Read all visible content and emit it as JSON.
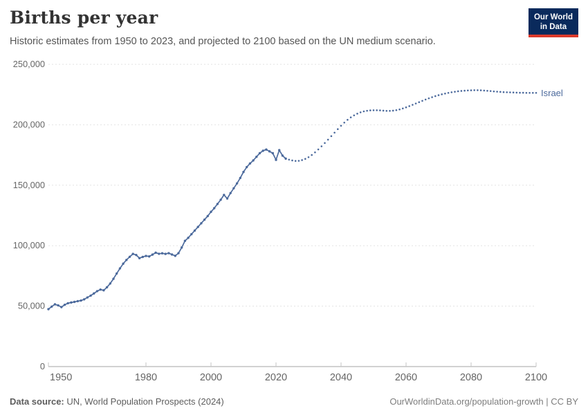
{
  "header": {
    "title": "Births per year",
    "subtitle": "Historic estimates from 1950 to 2023, and projected to 2100 based on the UN medium scenario.",
    "logo": {
      "line1": "Our World",
      "line2": "in Data",
      "bg_color": "#0A2A5C",
      "accent_color": "#DC3A2B",
      "text_color": "#FFFFFF"
    }
  },
  "chart_data": {
    "type": "line",
    "title": "Births per year",
    "entity": "Israel",
    "end_label": "Israel",
    "line_color": "#4C6A9C",
    "grid": "horizontal dashed",
    "legend_position": "end-of-line",
    "xlim": [
      1950,
      2100
    ],
    "ylim": [
      0,
      250000
    ],
    "x_ticks": [
      1950,
      1980,
      2000,
      2020,
      2040,
      2060,
      2080,
      2100
    ],
    "x_tick_labels": [
      "1950",
      "1980",
      "2000",
      "2020",
      "2040",
      "2060",
      "2080",
      "2100"
    ],
    "y_ticks": [
      0,
      50000,
      100000,
      150000,
      200000,
      250000
    ],
    "y_tick_labels": [
      "0",
      "50,000",
      "100,000",
      "150,000",
      "200,000",
      "250,000"
    ],
    "series": [
      {
        "name": "Israel (historic estimates)",
        "style": "solid-with-markers",
        "start_year": 1950,
        "values": [
          47500,
          49600,
          51500,
          50600,
          49200,
          51100,
          52400,
          53000,
          53500,
          54100,
          54600,
          55600,
          57200,
          58700,
          60500,
          62400,
          63700,
          63100,
          65600,
          68700,
          72600,
          77000,
          81200,
          85100,
          88200,
          90800,
          93200,
          92300,
          89700,
          90700,
          91500,
          91100,
          92600,
          94200,
          93300,
          93700,
          93200,
          93800,
          92700,
          91600,
          93800,
          98500,
          104000,
          106500,
          109500,
          112500,
          115500,
          118500,
          121500,
          124500,
          128000,
          131000,
          134500,
          138000,
          142000,
          139000,
          143500,
          147500,
          151500,
          156000,
          161000,
          165000,
          168000,
          170500,
          173500,
          176500,
          178500,
          179500,
          178000,
          176500,
          171000,
          179000,
          174500,
          172000
        ]
      },
      {
        "name": "Israel (UN medium projection)",
        "style": "dotted",
        "start_year": 2024,
        "values": [
          171200,
          170500,
          170100,
          170200,
          170800,
          171800,
          173200,
          175000,
          177200,
          179600,
          182200,
          184900,
          187700,
          190600,
          193500,
          196400,
          199200,
          201800,
          204100,
          206100,
          207800,
          209200,
          210300,
          211100,
          211600,
          211900,
          212000,
          212000,
          211900,
          211700,
          211500,
          211500,
          211700,
          212100,
          212700,
          213500,
          214400,
          215400,
          216500,
          217600,
          218700,
          219800,
          220900,
          221900,
          222800,
          223700,
          224500,
          225200,
          225800,
          226400,
          226900,
          227300,
          227700,
          228000,
          228200,
          228400,
          228500,
          228600,
          228600,
          228500,
          228300,
          228100,
          227900,
          227600,
          227400,
          227200,
          227000,
          226900,
          226800,
          226700,
          226600,
          226500,
          226500,
          226400,
          226400,
          226400,
          226400
        ]
      }
    ]
  },
  "footer": {
    "source_label": "Data source:",
    "source_text": " UN, World Population Prospects (2024)",
    "credit": "OurWorldinData.org/population-growth | CC BY"
  }
}
